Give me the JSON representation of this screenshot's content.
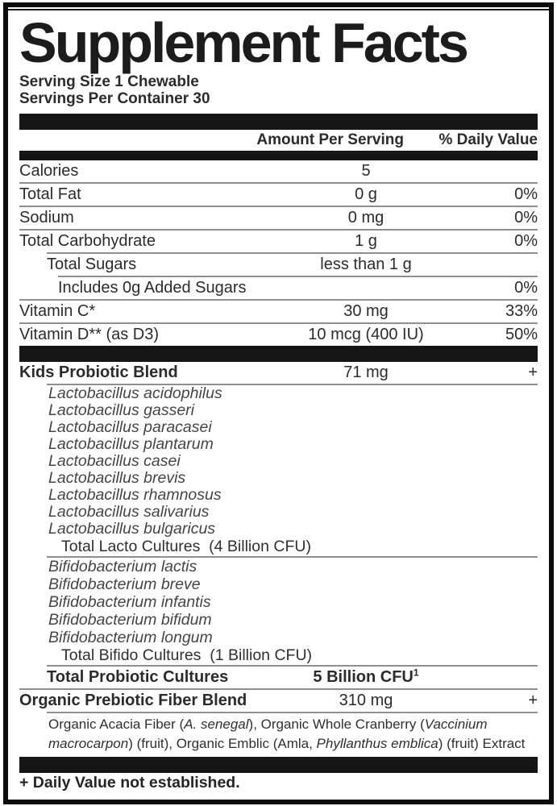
{
  "colors": {
    "bar": "#161616",
    "rule": "#8f8f8f",
    "text": "#2b2b2b",
    "border": "#0d0d0d"
  },
  "label": {
    "title": "Supplement Facts",
    "serving_size": "Serving Size 1 Chewable",
    "servings_per_container": "Servings Per Container 30",
    "columns": {
      "amount": "Amount Per Serving",
      "dv": "% Daily Value"
    },
    "footnote": "+ Daily Value not established."
  },
  "facts": [
    {
      "kind": "row",
      "label": "Calories",
      "amount": "5",
      "dv": ""
    },
    {
      "kind": "rule",
      "style": "full"
    },
    {
      "kind": "row",
      "label": "Total Fat",
      "amount": "0 g",
      "dv": "0%"
    },
    {
      "kind": "rule",
      "style": "full"
    },
    {
      "kind": "row",
      "label": "Sodium",
      "amount": "0 mg",
      "dv": "0%"
    },
    {
      "kind": "rule",
      "style": "full"
    },
    {
      "kind": "row",
      "label": "Total Carbohydrate",
      "amount": "1 g",
      "dv": "0%"
    },
    {
      "kind": "rule",
      "style": "ind1"
    },
    {
      "kind": "row",
      "label": "Total Sugars",
      "indent": 1,
      "amount": "less than 1 g",
      "dv": ""
    },
    {
      "kind": "rule",
      "style": "ind2"
    },
    {
      "kind": "row",
      "label": "Includes 0g Added Sugars",
      "indent": 2,
      "amount": "",
      "dv": "0%"
    },
    {
      "kind": "rule",
      "style": "full"
    },
    {
      "kind": "row",
      "label": "Vitamin C*",
      "amount": "30 mg",
      "dv": "33%"
    },
    {
      "kind": "rule",
      "style": "full"
    },
    {
      "kind": "row",
      "label": "Vitamin D** (as D3)",
      "amount": "10 mcg (400 IU)",
      "dv": "50%"
    },
    {
      "kind": "bar"
    },
    {
      "kind": "row",
      "label": "Kids Probiotic Blend",
      "bold": true,
      "amount": "71 mg",
      "dv": "+"
    },
    {
      "kind": "rule",
      "style": "ind1"
    },
    {
      "kind": "species",
      "label": "Lactobacillus acidophilus"
    },
    {
      "kind": "species",
      "label": "Lactobacillus gasseri"
    },
    {
      "kind": "species",
      "label": "Lactobacillus paracasei"
    },
    {
      "kind": "species",
      "label": "Lactobacillus plantarum"
    },
    {
      "kind": "species",
      "label": "Lactobacillus casei"
    },
    {
      "kind": "species",
      "label": "Lactobacillus brevis"
    },
    {
      "kind": "species",
      "label": "Lactobacillus rhamnosus"
    },
    {
      "kind": "species",
      "label": "Lactobacillus salivarius"
    },
    {
      "kind": "species",
      "label": "Lactobacillus bulgaricus"
    },
    {
      "kind": "subtotal",
      "label": "Total Lacto Cultures  (4 Billion CFU)"
    },
    {
      "kind": "rule",
      "style": "ind1"
    },
    {
      "kind": "species",
      "wide": true,
      "label": "Bifidobacterium lactis"
    },
    {
      "kind": "species",
      "wide": true,
      "label": "Bifidobacterium breve"
    },
    {
      "kind": "species",
      "wide": true,
      "label": "Bifidobacterium infantis"
    },
    {
      "kind": "species",
      "wide": true,
      "label": "Bifidobacterium bifidum"
    },
    {
      "kind": "species",
      "wide": true,
      "label": "Bifidobacterium longum"
    },
    {
      "kind": "subtotal",
      "label": "Total Bifido Cultures  (1 Billion CFU)"
    },
    {
      "kind": "rule",
      "style": "ind1"
    },
    {
      "kind": "row",
      "label": "Total Probiotic Cultures",
      "bold": true,
      "indent": 1,
      "amount": "5 Billion CFU",
      "amount_sup": "1",
      "amount_bold": true,
      "dv": ""
    },
    {
      "kind": "rule",
      "style": "full"
    },
    {
      "kind": "row",
      "label": "Organic Prebiotic Fiber Blend",
      "bold": true,
      "amount": "310 mg",
      "dv": "+"
    },
    {
      "kind": "rule",
      "style": "ind1"
    },
    {
      "kind": "desc",
      "segments": [
        {
          "t": "Organic Acacia Fiber (",
          "i": false
        },
        {
          "t": "A. senegal",
          "i": true
        },
        {
          "t": "), Organic Whole Cranberry (",
          "i": false
        },
        {
          "t": "Vaccinium macrocarpon",
          "i": true
        },
        {
          "t": ") (fruit), Organic Emblic (Amla, ",
          "i": false
        },
        {
          "t": "Phyllanthus emblica",
          "i": true
        },
        {
          "t": ") (fruit) Extract",
          "i": false
        }
      ]
    }
  ]
}
